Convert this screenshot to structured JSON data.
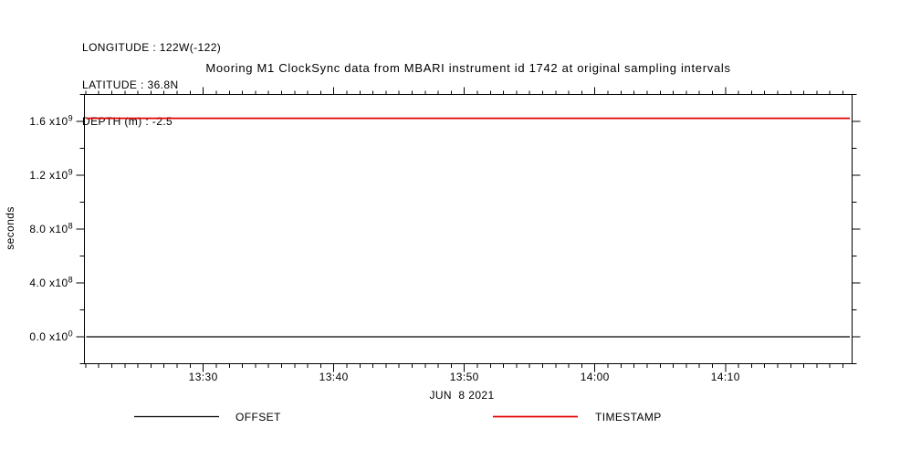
{
  "header": {
    "longitude": "LONGITUDE : 122W(-122)",
    "latitude": "LATITUDE : 36.8N",
    "depth": "DEPTH (m) : -2.5"
  },
  "chart_data": {
    "type": "line",
    "title": "Mooring M1 ClockSync data from MBARI instrument id 1742 at original sampling intervals",
    "ylabel": "seconds",
    "x_date_label": "JUN  8 2021",
    "x_axis": {
      "unit": "time of day (HH:MM)",
      "range_minutes_of_day": [
        800.9,
        859.7
      ],
      "major_ticks_minutes": [
        810,
        820,
        830,
        840,
        850
      ],
      "major_tick_labels": [
        "13:30",
        "13:40",
        "13:50",
        "14:00",
        "14:10"
      ],
      "minor_tick_step_minutes": 1
    },
    "y_axis": {
      "range": [
        -200000000,
        1800000000
      ],
      "major_ticks": [
        0,
        400000000,
        800000000,
        1200000000,
        1600000000
      ],
      "major_tick_labels": [
        {
          "mantissa": "0.0",
          "exponent": "0"
        },
        {
          "mantissa": "4.0",
          "exponent": "8"
        },
        {
          "mantissa": "8.0",
          "exponent": "8"
        },
        {
          "mantissa": "1.2",
          "exponent": "9"
        },
        {
          "mantissa": "1.6",
          "exponent": "9"
        }
      ],
      "minor_tick_step": 200000000
    },
    "series": [
      {
        "name": "OFFSET",
        "color": "#000000",
        "type": "constant-line",
        "value": 0
      },
      {
        "name": "TIMESTAMP",
        "color": "#e10000",
        "type": "constant-line",
        "value": 1623000000
      }
    ],
    "grid": false,
    "legend_position": "bottom"
  }
}
